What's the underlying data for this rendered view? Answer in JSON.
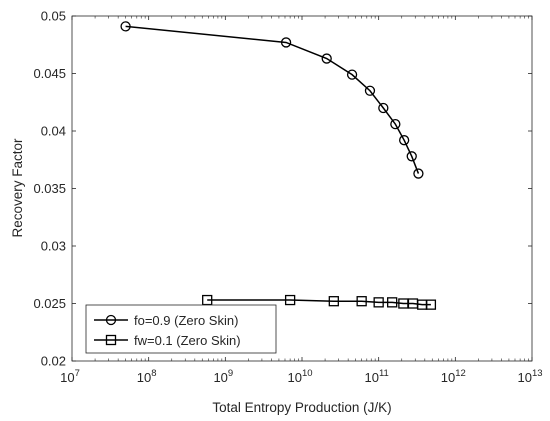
{
  "chart_data": {
    "type": "line",
    "xscale": "log",
    "xlim": [
      10000000,
      10000000000000
    ],
    "ylim": [
      0.02,
      0.05
    ],
    "xlabel": "Total Entropy Production (J/K)",
    "ylabel": "Recovery Factor",
    "legend_position": "bottom-left",
    "grid": false,
    "yticks": [
      "0.02",
      "0.025",
      "0.03",
      "0.035",
      "0.04",
      "0.045",
      "0.05"
    ],
    "xticks": [
      {
        "base": "10",
        "exp": "7"
      },
      {
        "base": "10",
        "exp": "8"
      },
      {
        "base": "10",
        "exp": "9"
      },
      {
        "base": "10",
        "exp": "10"
      },
      {
        "base": "10",
        "exp": "11"
      },
      {
        "base": "10",
        "exp": "12"
      },
      {
        "base": "10",
        "exp": "13"
      }
    ],
    "series": [
      {
        "name": "fo=0.9 (Zero Skin)",
        "marker": "circle",
        "color": "#000000",
        "x": [
          50000000,
          6200000000,
          21000000000,
          45000000000,
          77000000000,
          115000000000,
          165000000000,
          215000000000,
          270000000000,
          330000000000
        ],
        "y": [
          0.0491,
          0.0477,
          0.0463,
          0.0449,
          0.0435,
          0.042,
          0.0406,
          0.0392,
          0.0378,
          0.0363
        ]
      },
      {
        "name": "fw=0.1 (Zero Skin)",
        "marker": "square",
        "color": "#000000",
        "x": [
          580000000,
          7000000000,
          26000000000,
          60000000000,
          100000000000,
          150000000000,
          210000000000,
          280000000000,
          370000000000,
          480000000000
        ],
        "y": [
          0.0253,
          0.0253,
          0.0252,
          0.0252,
          0.0251,
          0.0251,
          0.025,
          0.025,
          0.0249,
          0.0249
        ]
      }
    ]
  }
}
